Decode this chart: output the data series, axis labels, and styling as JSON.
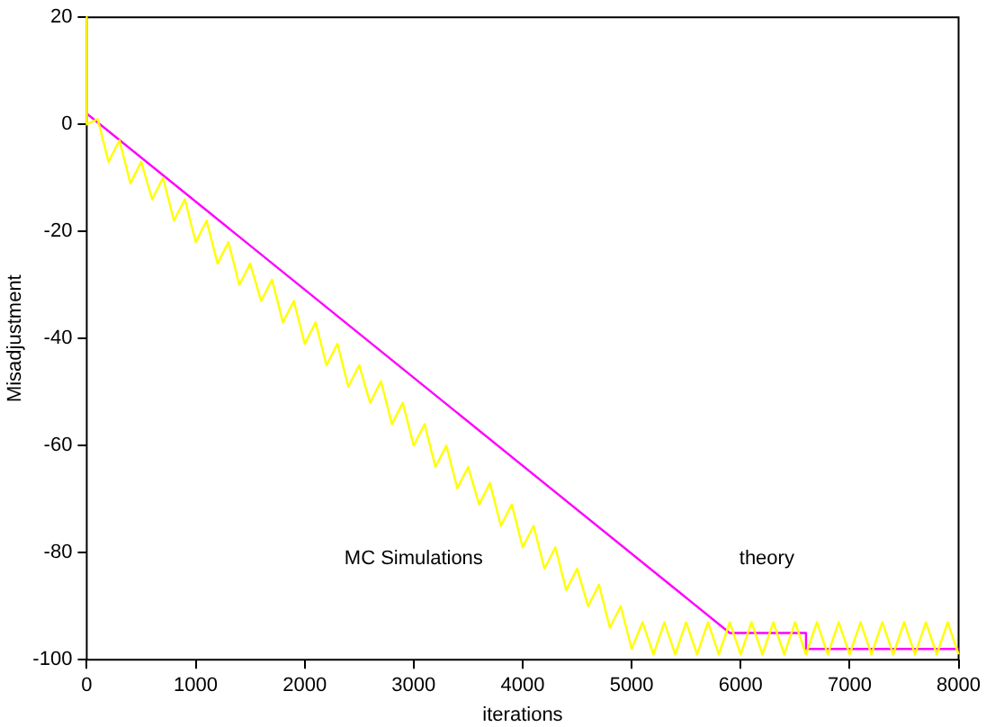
{
  "chart_data": {
    "type": "line",
    "xlabel": "iterations",
    "ylabel": "Misadjustment",
    "xlim": [
      0,
      8000
    ],
    "xticks": [
      0,
      1000,
      2000,
      3000,
      4000,
      5000,
      6000,
      7000,
      8000
    ],
    "ylim": [
      -100,
      20
    ],
    "yticks": [
      -100,
      -80,
      -60,
      -40,
      -20,
      0,
      20
    ],
    "series": [
      {
        "color": "#ffff00",
        "x": [
          0,
          0,
          100,
          200,
          300,
          400,
          500,
          600,
          700,
          800,
          900,
          1000,
          1100,
          1200,
          1300,
          1400,
          1500,
          1600,
          1700,
          1800,
          1900,
          2000,
          2100,
          2200,
          2300,
          2400,
          2500,
          2600,
          2700,
          2800,
          2900,
          3000,
          3100,
          3200,
          3300,
          3400,
          3500,
          3600,
          3700,
          3800,
          3900,
          4000,
          4100,
          4200,
          4300,
          4400,
          4500,
          4600,
          4700,
          4800,
          4900,
          5000,
          5100,
          5200,
          5300,
          5400,
          5500,
          5600,
          5700,
          5800,
          5900,
          6000,
          6100,
          6200,
          6300,
          6400,
          6500,
          6600,
          6700,
          6800,
          6900,
          7000,
          7100,
          7200,
          7300,
          7400,
          7500,
          7600,
          7700,
          7800,
          7900,
          8000
        ],
        "values": [
          20,
          0,
          1,
          -7,
          -3,
          -11,
          -7,
          -14,
          -10,
          -18,
          -14,
          -22,
          -18,
          -26,
          -22,
          -30,
          -26,
          -33,
          -29,
          -37,
          -33,
          -41,
          -37,
          -45,
          -41,
          -49,
          -45,
          -52,
          -48,
          -56,
          -52,
          -60,
          -56,
          -64,
          -60,
          -68,
          -64,
          -71,
          -67,
          -75,
          -71,
          -79,
          -75,
          -83,
          -79,
          -87,
          -83,
          -90,
          -86,
          -94,
          -90,
          -98,
          -93,
          -99,
          -93,
          -99,
          -93,
          -99,
          -93,
          -99,
          -93,
          -99,
          -93,
          -99,
          -93,
          -99,
          -93,
          -99,
          -93,
          -99,
          -93,
          -99,
          -93,
          -99,
          -93,
          -99,
          -93,
          -99,
          -93,
          -99,
          -93,
          -99
        ]
      },
      {
        "color": "#ff00ff",
        "x": [
          0,
          5900,
          6600,
          6600,
          8000
        ],
        "values": [
          2,
          -95,
          -95,
          -98,
          -98
        ]
      }
    ],
    "annotations": [
      "MC Simulations",
      "theory"
    ],
    "marker": "none",
    "line_style": "solid"
  }
}
